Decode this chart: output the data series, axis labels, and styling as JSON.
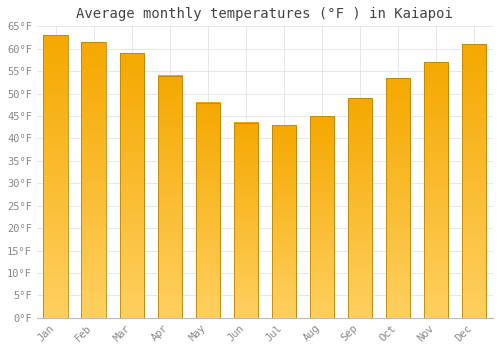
{
  "title": "Average monthly temperatures (°F ) in Kaiapoi",
  "months": [
    "Jan",
    "Feb",
    "Mar",
    "Apr",
    "May",
    "Jun",
    "Jul",
    "Aug",
    "Sep",
    "Oct",
    "Nov",
    "Dec"
  ],
  "values": [
    63,
    61.5,
    59,
    54,
    48,
    43.5,
    43,
    45,
    49,
    53.5,
    57,
    61
  ],
  "bar_color_top": "#F5A800",
  "bar_color_bottom": "#FFD060",
  "bar_edge_color": "#B8860B",
  "background_color": "#FFFFFF",
  "grid_color": "#DDDDDD",
  "ylim": [
    0,
    65
  ],
  "yticks": [
    0,
    5,
    10,
    15,
    20,
    25,
    30,
    35,
    40,
    45,
    50,
    55,
    60,
    65
  ],
  "title_fontsize": 10,
  "tick_fontsize": 7.5,
  "tick_color": "#888888",
  "title_color": "#444444",
  "font_family": "monospace",
  "bar_width": 0.65
}
